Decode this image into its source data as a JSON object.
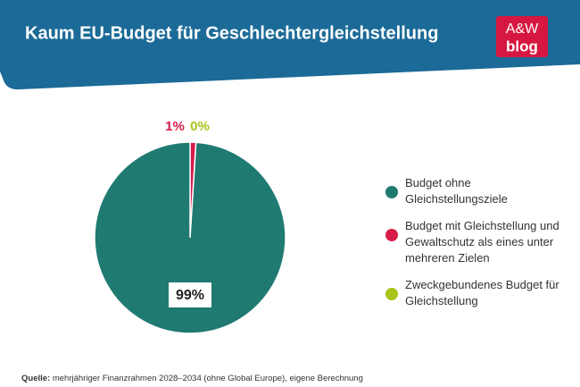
{
  "chart_data": {
    "type": "pie",
    "title": "Kaum EU-Budget für Geschlechtergleichstellung",
    "categories": [
      "Budget ohne Gleichstellungsziele",
      "Budget mit Gleichstellung und Gewaltschutz als eines unter mehreren Zielen",
      "Zweckgebundenes Budget für Gleichstellung"
    ],
    "values": [
      99,
      1,
      0
    ],
    "value_labels": [
      "99%",
      "1%",
      "0%"
    ],
    "colors": [
      "#1f7a72",
      "#d81c4a",
      "#a8c418"
    ]
  },
  "logo": {
    "line1": "A&W",
    "line2": "blog"
  },
  "source": {
    "label": "Quelle:",
    "text": "mehrjähriger Finanzrahmen 2028–2034 (ohne Global Europe), eigene Berechnung"
  }
}
